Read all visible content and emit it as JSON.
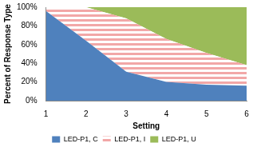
{
  "chart_data": {
    "type": "area",
    "stacked": true,
    "grid": false,
    "legend": "bottom",
    "x_label": "Setting",
    "y_label": "Percent of Response Type",
    "x": [
      1,
      2,
      3,
      4,
      5,
      6
    ],
    "xlim": [
      1,
      6
    ],
    "xticks": [
      1,
      2,
      3,
      4,
      5,
      6
    ],
    "ylim": [
      0,
      100
    ],
    "yticks": [
      {
        "value": 0,
        "label": "0%"
      },
      {
        "value": 20,
        "label": "20%"
      },
      {
        "value": 40,
        "label": "40%"
      },
      {
        "value": 60,
        "label": "60%"
      },
      {
        "value": 80,
        "label": "80%"
      },
      {
        "value": 100,
        "label": "100%"
      }
    ],
    "series": [
      {
        "name": "LED-P1, C",
        "color": "#4f81bd",
        "values": [
          96,
          64,
          31,
          20,
          17,
          16
        ]
      },
      {
        "name": "LED-P1, I",
        "color": "#f2a7a7",
        "line_style": "striped",
        "values": [
          4,
          36,
          57,
          46,
          34,
          22
        ]
      },
      {
        "name": "LED-P1, U",
        "color": "#9bbb59",
        "values": [
          0,
          0,
          12,
          34,
          49,
          62
        ]
      }
    ]
  }
}
